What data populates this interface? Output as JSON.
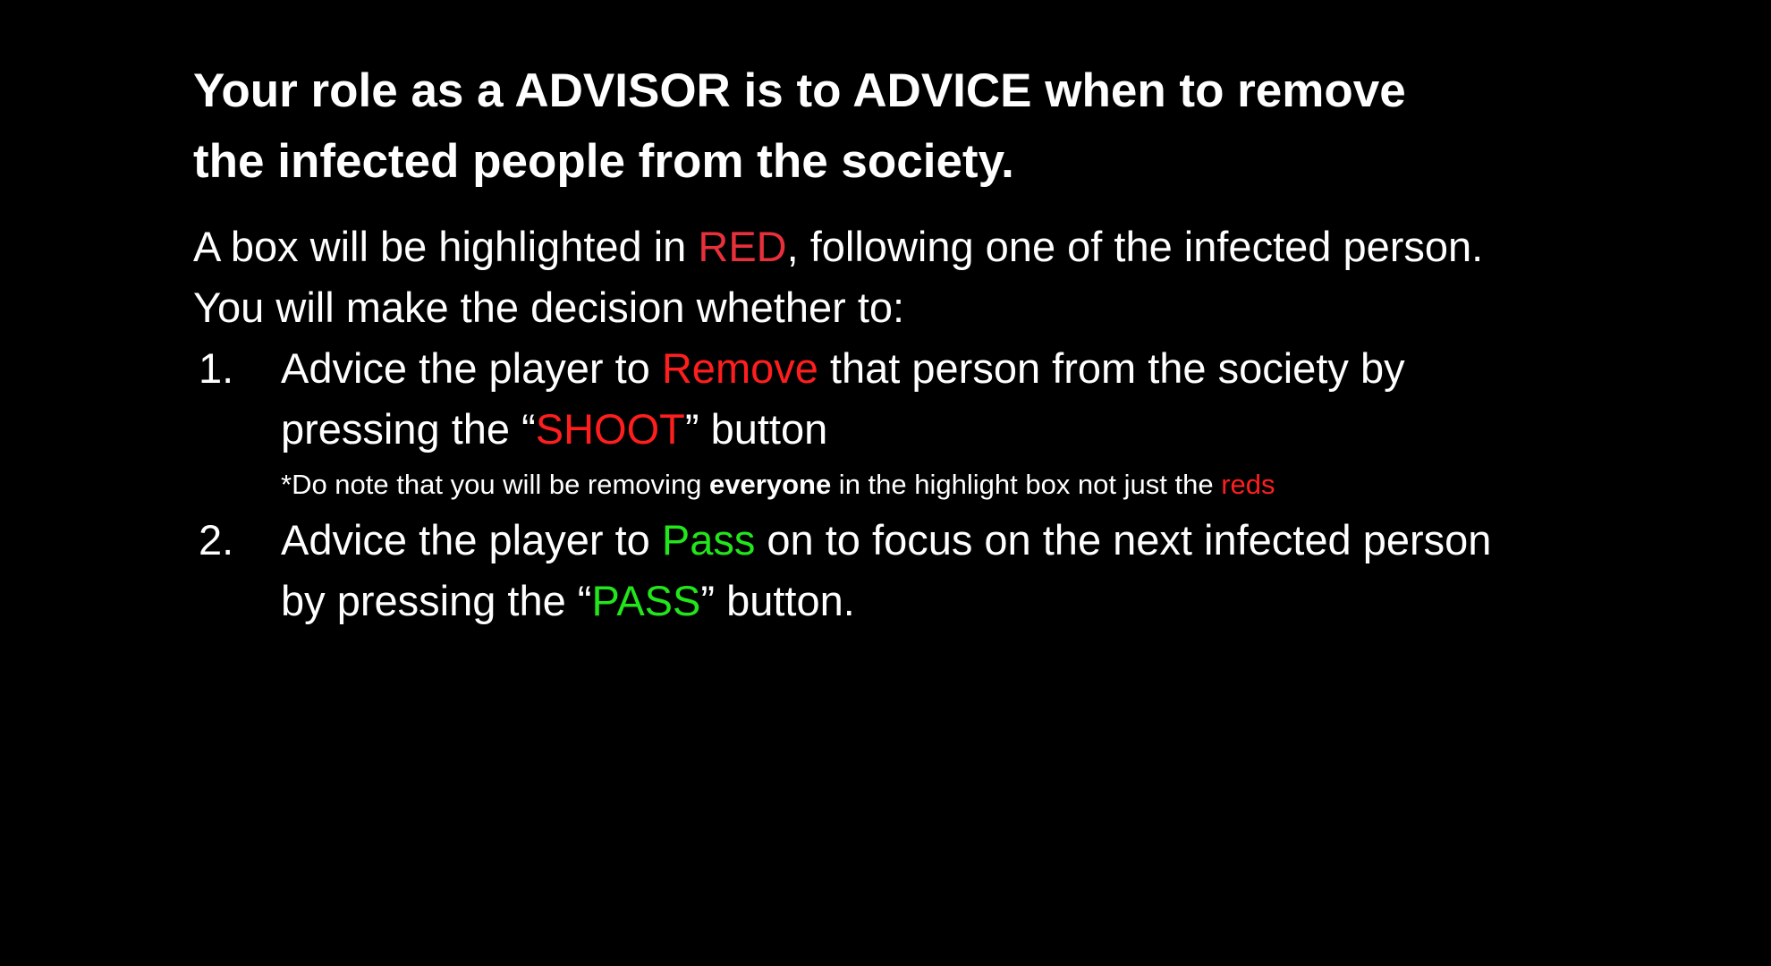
{
  "heading": {
    "line1": "Your role as a ADVISOR is to ADVICE when to remove",
    "line2": "the infected people from the society."
  },
  "intro": {
    "part1": "A box will be highlighted in ",
    "highlight": "RED",
    "part2": ", following one of the infected person.",
    "line2": "You will make the decision whether to:"
  },
  "steps": [
    {
      "number": "1.",
      "part1": "Advice the player to ",
      "keyword": "Remove",
      "part2": " that person from the society by",
      "part3": "pressing the “",
      "button": "SHOOT",
      "part4": "” button",
      "note": {
        "part1": "*Do note that you will be removing ",
        "bold": "everyone",
        "part2": " in the highlight box not just the ",
        "highlight": "reds"
      }
    },
    {
      "number": "2.",
      "part1": "Advice the player to ",
      "keyword": "Pass",
      "part2": " on to focus on the next infected person",
      "part3": "by pressing the “",
      "button": "PASS",
      "part4": "” button."
    }
  ],
  "colors": {
    "background": "#000000",
    "text": "#ffffff",
    "red_highlight": "#e8303b",
    "remove_red": "#ff1e1e",
    "pass_green": "#22e51c"
  }
}
